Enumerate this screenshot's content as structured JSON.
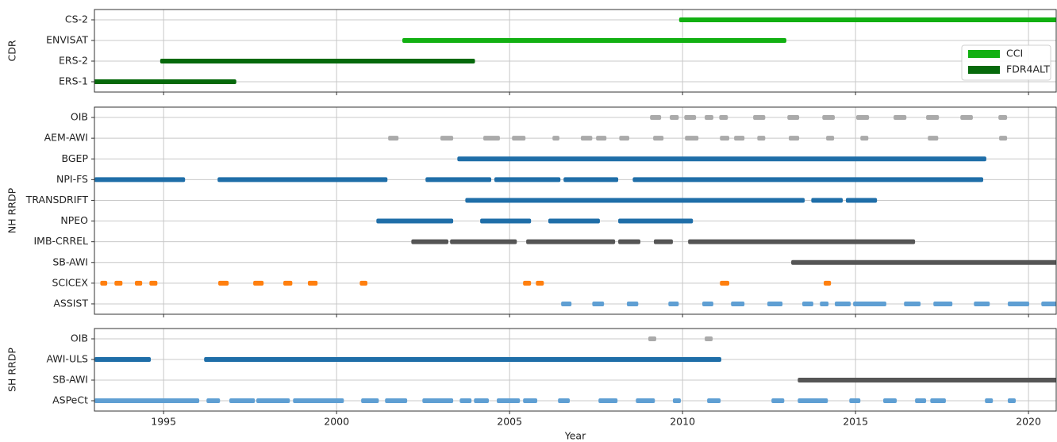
{
  "chart_data": [
    {
      "type": "timeline",
      "ylabel": "CDR",
      "xlim": [
        1993,
        2020.8
      ],
      "xticks": [
        1995,
        2000,
        2005,
        2010,
        2015,
        2020
      ],
      "grid": true,
      "categories": [
        "CS-2",
        "ENVISAT",
        "ERS-2",
        "ERS-1"
      ],
      "colors": [
        "#12b012",
        "#12b012",
        "#06690b",
        "#06690b"
      ],
      "segments": [
        [
          [
            2009.9,
            2021
          ]
        ],
        [
          [
            2001.9,
            2013.0
          ]
        ],
        [
          [
            1994.9,
            2004.0
          ]
        ],
        [
          [
            1992.9,
            1997.1
          ]
        ]
      ],
      "series": [
        {
          "name": "CCI",
          "color": "#12b012"
        },
        {
          "name": "FDR4ALT",
          "color": "#06690b"
        }
      ],
      "legend": "center right"
    },
    {
      "type": "timeline",
      "ylabel": "NH RRDP",
      "xlim": [
        1993,
        2020.8
      ],
      "xticks": [
        1995,
        2000,
        2005,
        2010,
        2015,
        2020
      ],
      "grid": true,
      "categories": [
        "OIB",
        "AEM-AWI",
        "BGEP",
        "NPI-FS",
        "TRANSDRIFT",
        "NPEO",
        "IMB-CRREL",
        "SB-AWI",
        "SCICEX",
        "ASSIST"
      ],
      "colors": [
        "#aaaaaa",
        "#aaaaaa",
        "#1f6ea8",
        "#1f6ea8",
        "#1f6ea8",
        "#1f6ea8",
        "#555555",
        "#555555",
        "#ff7f0e",
        "#5f9fd3"
      ],
      "segments": [
        [
          [
            2009.06,
            2009.38
          ],
          [
            2009.63,
            2009.89
          ],
          [
            2010.05,
            2010.39
          ],
          [
            2010.64,
            2010.89
          ],
          [
            2011.06,
            2011.31
          ],
          [
            2012.04,
            2012.39
          ],
          [
            2013.03,
            2013.37
          ],
          [
            2014.04,
            2014.4
          ],
          [
            2015.02,
            2015.39
          ],
          [
            2016.1,
            2016.47
          ],
          [
            2017.04,
            2017.41
          ],
          [
            2018.03,
            2018.39
          ],
          [
            2019.13,
            2019.38
          ]
        ],
        [
          [
            2001.49,
            2001.79
          ],
          [
            2003.0,
            2003.37
          ],
          [
            2004.24,
            2004.72
          ],
          [
            2005.07,
            2005.46
          ],
          [
            2006.24,
            2006.44
          ],
          [
            2007.06,
            2007.39
          ],
          [
            2007.5,
            2007.8
          ],
          [
            2008.17,
            2008.46
          ],
          [
            2009.15,
            2009.45
          ],
          [
            2010.07,
            2010.46
          ],
          [
            2011.08,
            2011.35
          ],
          [
            2011.49,
            2011.79
          ],
          [
            2012.16,
            2012.39
          ],
          [
            2013.07,
            2013.37
          ],
          [
            2014.15,
            2014.38
          ],
          [
            2015.14,
            2015.37
          ],
          [
            2017.09,
            2017.39
          ],
          [
            2019.15,
            2019.38
          ]
        ],
        [
          [
            2003.49,
            2018.78
          ]
        ],
        [
          [
            1993.0,
            1995.62
          ],
          [
            1996.56,
            2001.47
          ],
          [
            2002.57,
            2004.47
          ],
          [
            2004.56,
            2006.47
          ],
          [
            2006.56,
            2008.14
          ],
          [
            2008.56,
            2018.69
          ]
        ],
        [
          [
            2003.72,
            2013.53
          ],
          [
            2013.72,
            2014.63
          ],
          [
            2014.72,
            2015.62
          ]
        ],
        [
          [
            2001.15,
            2003.37
          ],
          [
            2004.15,
            2005.62
          ],
          [
            2006.12,
            2007.61
          ],
          [
            2008.14,
            2010.3
          ]
        ],
        [
          [
            2002.16,
            2003.23
          ],
          [
            2003.28,
            2005.21
          ],
          [
            2005.48,
            2008.05
          ],
          [
            2008.14,
            2008.78
          ],
          [
            2009.17,
            2009.72
          ],
          [
            2010.16,
            2016.72
          ]
        ],
        [
          [
            2013.14,
            2021
          ]
        ],
        [
          [
            1993.17,
            1993.37
          ],
          [
            1993.58,
            1993.81
          ],
          [
            1994.17,
            1994.38
          ],
          [
            1994.59,
            1994.82
          ],
          [
            1996.58,
            1996.88
          ],
          [
            1997.59,
            1997.89
          ],
          [
            1998.46,
            1998.72
          ],
          [
            1999.17,
            1999.45
          ],
          [
            2000.67,
            2000.89
          ],
          [
            2005.39,
            2005.62
          ],
          [
            2005.76,
            2005.99
          ],
          [
            2011.08,
            2011.35
          ],
          [
            2014.08,
            2014.29
          ]
        ],
        [
          [
            2006.49,
            2006.79
          ],
          [
            2007.39,
            2007.73
          ],
          [
            2008.39,
            2008.72
          ],
          [
            2009.59,
            2009.89
          ],
          [
            2010.57,
            2010.89
          ],
          [
            2011.4,
            2011.79
          ],
          [
            2012.45,
            2012.89
          ],
          [
            2013.46,
            2013.78
          ],
          [
            2013.97,
            2014.22
          ],
          [
            2014.4,
            2014.86
          ],
          [
            2014.93,
            2015.89
          ],
          [
            2016.4,
            2016.88
          ],
          [
            2017.25,
            2017.8
          ],
          [
            2018.42,
            2018.88
          ],
          [
            2019.4,
            2020.02
          ],
          [
            2020.37,
            2021
          ]
        ]
      ]
    },
    {
      "type": "timeline",
      "ylabel": "SH RRDP",
      "xlabel": "Year",
      "xlim": [
        1993,
        2020.8
      ],
      "xticks": [
        1995,
        2000,
        2005,
        2010,
        2015,
        2020
      ],
      "grid": true,
      "categories": [
        "OIB",
        "AWI-ULS",
        "SB-AWI",
        "ASPeCt"
      ],
      "colors": [
        "#aaaaaa",
        "#1f6ea8",
        "#555555",
        "#5f9fd3"
      ],
      "segments": [
        [
          [
            2009.01,
            2009.24
          ],
          [
            2010.64,
            2010.87
          ]
        ],
        [
          [
            1993.0,
            1994.63
          ],
          [
            1996.17,
            2011.12
          ]
        ],
        [
          [
            2013.33,
            2021
          ]
        ],
        [
          [
            1993.0,
            1996.03
          ],
          [
            1996.24,
            1996.63
          ],
          [
            1996.9,
            1997.64
          ],
          [
            1997.68,
            1998.65
          ],
          [
            1998.74,
            2000.21
          ],
          [
            2000.71,
            2001.22
          ],
          [
            2001.4,
            2002.04
          ],
          [
            2002.48,
            2003.37
          ],
          [
            2003.56,
            2003.9
          ],
          [
            2003.97,
            2004.4
          ],
          [
            2004.63,
            2005.3
          ],
          [
            2005.39,
            2005.8
          ],
          [
            2006.4,
            2006.74
          ],
          [
            2007.57,
            2008.12
          ],
          [
            2008.65,
            2009.2
          ],
          [
            2009.72,
            2009.95
          ],
          [
            2010.71,
            2011.1
          ],
          [
            2012.57,
            2012.94
          ],
          [
            2013.33,
            2014.2
          ],
          [
            2014.82,
            2015.14
          ],
          [
            2015.8,
            2016.19
          ],
          [
            2016.72,
            2017.04
          ],
          [
            2017.16,
            2017.61
          ],
          [
            2018.74,
            2018.97
          ],
          [
            2019.4,
            2019.63
          ]
        ]
      ]
    }
  ]
}
